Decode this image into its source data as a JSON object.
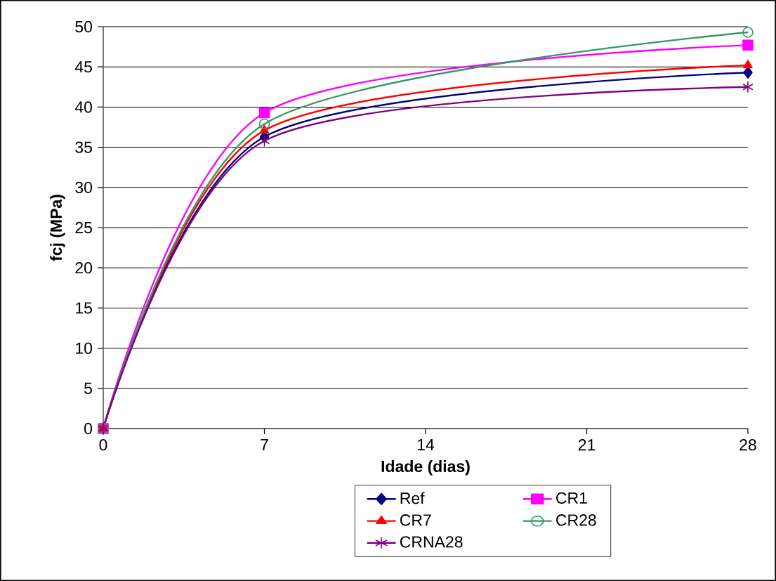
{
  "chart_data": {
    "type": "line",
    "xlabel": "Idade (dias)",
    "ylabel": "fcj (MPa)",
    "x": [
      0,
      7,
      28
    ],
    "xlim": [
      0,
      28
    ],
    "xticks": [
      0,
      7,
      14,
      21,
      28
    ],
    "ylim": [
      0,
      50
    ],
    "yticks": [
      0,
      5,
      10,
      15,
      20,
      25,
      30,
      35,
      40,
      45,
      50
    ],
    "grid": "y",
    "legend": "bottom right",
    "line_style": "solid",
    "series": [
      {
        "name": "Ref",
        "color": "#000080",
        "marker": "diamond",
        "values": [
          0,
          36.3,
          44.3
        ]
      },
      {
        "name": "CR1",
        "color": "#ff00ff",
        "marker": "square",
        "values": [
          0,
          39.3,
          47.7
        ]
      },
      {
        "name": "CR7",
        "color": "#ff0000",
        "marker": "triangle",
        "values": [
          0,
          37.1,
          45.2
        ]
      },
      {
        "name": "CR28",
        "color": "#339966",
        "marker": "circle",
        "values": [
          0,
          37.9,
          49.3
        ]
      },
      {
        "name": "CRNA28",
        "color": "#800080",
        "marker": "cross",
        "values": [
          0,
          35.8,
          42.5
        ]
      }
    ]
  }
}
